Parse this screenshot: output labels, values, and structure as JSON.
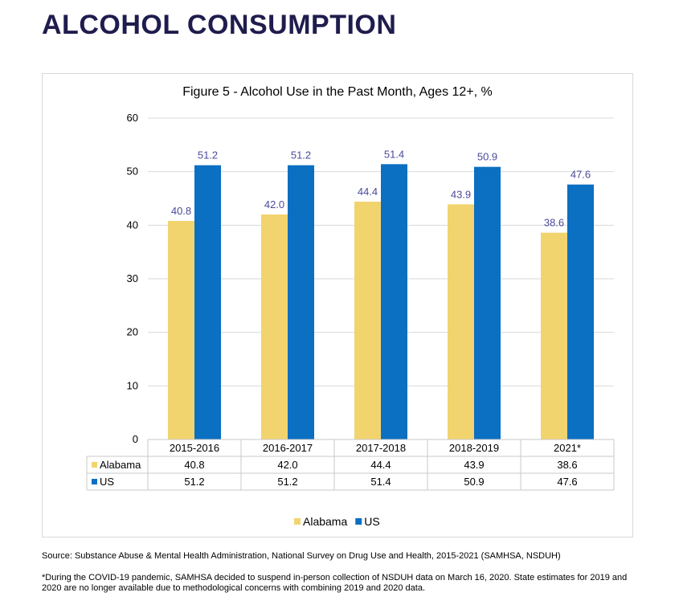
{
  "page": {
    "title": "ALCOHOL CONSUMPTION",
    "source": "Source: Substance Abuse & Mental Health Administration, National Survey on Drug Use and Health, 2015-2021 (SAMHSA, NSDUH)",
    "footnote": "*During the COVID-19 pandemic, SAMHSA decided to suspend in-person collection of NSDUH data on March 16, 2020. State estimates for 2019 and 2020 are no longer available due to methodological concerns with combining 2019 and 2020 data."
  },
  "chart_data": {
    "type": "bar",
    "title": "Figure 5 - Alcohol Use in the Past Month, Ages 12+, %",
    "categories": [
      "2015-2016",
      "2016-2017",
      "2017-2018",
      "2018-2019",
      "2021*"
    ],
    "series": [
      {
        "name": "Alabama",
        "values": [
          40.8,
          42.0,
          44.4,
          43.9,
          38.6
        ],
        "labels": [
          "40.8",
          "42.0",
          "44.4",
          "43.9",
          "38.6"
        ],
        "color": "#f2d46e"
      },
      {
        "name": "US",
        "values": [
          51.2,
          51.2,
          51.4,
          50.9,
          47.6
        ],
        "labels": [
          "51.2",
          "51.2",
          "51.4",
          "50.9",
          "47.6"
        ],
        "color": "#0b6fc2"
      }
    ],
    "ylim": [
      0,
      60
    ],
    "yticks": [
      "0",
      "10",
      "20",
      "30",
      "40",
      "50",
      "60"
    ],
    "grid": true,
    "legend": "bottom",
    "data_table": true,
    "label_color": "#4a4a9a"
  }
}
